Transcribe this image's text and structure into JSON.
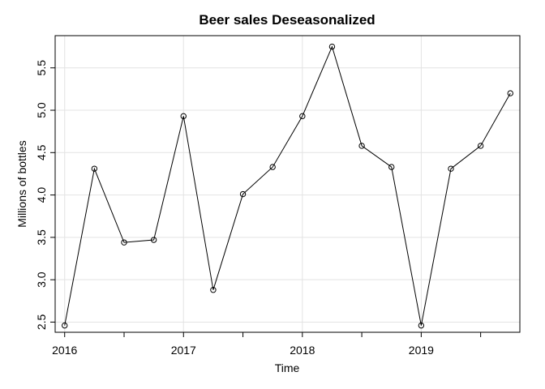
{
  "chart_data": {
    "type": "line",
    "title": "Beer sales Deseasonalized",
    "xlabel": "Time",
    "ylabel": "Millions of bottles",
    "xlim": [
      2015.92,
      2019.83
    ],
    "ylim": [
      2.38,
      5.88
    ],
    "x_ticks": [
      2016,
      2017,
      2018,
      2019
    ],
    "x_tick_labels": [
      "2016",
      "2017",
      "2018",
      "2019"
    ],
    "x_minor_ticks": [
      2016.5,
      2017.5,
      2018.5,
      2019.5
    ],
    "y_ticks": [
      2.5,
      3.0,
      3.5,
      4.0,
      4.5,
      5.0,
      5.5
    ],
    "y_tick_labels": [
      "2.5",
      "3.0",
      "3.5",
      "4.0",
      "4.5",
      "5.0",
      "5.5"
    ],
    "grid": true,
    "series": [
      {
        "x": [
          2016.0,
          2016.25,
          2016.5,
          2016.75,
          2017.0,
          2017.25,
          2017.5,
          2017.75,
          2018.0,
          2018.25,
          2018.5,
          2018.75,
          2019.0,
          2019.25,
          2019.5,
          2019.75
        ],
        "values": [
          2.46,
          4.31,
          3.44,
          3.47,
          4.93,
          2.88,
          4.01,
          4.33,
          4.93,
          5.75,
          4.58,
          4.33,
          2.46,
          4.31,
          4.58,
          5.2
        ]
      }
    ]
  }
}
